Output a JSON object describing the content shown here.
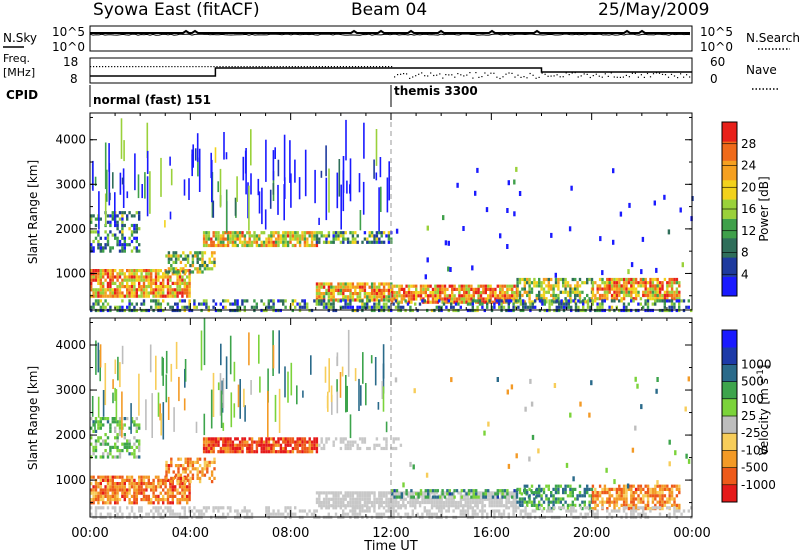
{
  "header": {
    "station": "Syowa East (fitACF)",
    "beam": "Beam 04",
    "date": "25/May/2009"
  },
  "top_panels": {
    "nsky_label": "N.Sky",
    "nsky_ticks": [
      "10^5",
      "10^0"
    ],
    "nsearch_label": "N.Search",
    "nsearch_ticks": [
      "10^5",
      "10^0"
    ],
    "freq_label": "Freq.",
    "freq_unit": "[MHz]",
    "freq_ticks": [
      "18",
      "8"
    ],
    "nave_label": "Nave",
    "nave_ticks": [
      "60",
      "0"
    ],
    "cpid_label": "CPID",
    "cpid_segments": [
      {
        "label": "normal (fast) 151",
        "start_hour": 0
      },
      {
        "label": "themis 3300",
        "start_hour": 12
      }
    ]
  },
  "colors": {
    "power_scale": [
      "#1a1aff",
      "#1e3a9e",
      "#2f6e5a",
      "#3fa04a",
      "#9ad13a",
      "#f2d21c",
      "#f5a020",
      "#ef6a1a",
      "#e8201a"
    ],
    "velocity_scale": [
      "#e51a1a",
      "#ee5a1a",
      "#f39a26",
      "#f7cd5a",
      "#bdbdbd",
      "#7bd33a",
      "#3da44c",
      "#2a6a8a",
      "#1d3aa8",
      "#1a1aff"
    ],
    "ground_scatter": "#c8c8c8"
  },
  "chart_data": [
    {
      "type": "heatmap",
      "title": "Power",
      "xlabel": "",
      "ylabel": "Slant Range [km]",
      "x_range_hours": [
        0,
        24
      ],
      "ylim": [
        180,
        4600
      ],
      "y_ticks": [
        1000,
        2000,
        3000,
        4000
      ],
      "colorbar_label": "Power [dB]",
      "colorbar_ticks": [
        "4",
        "8",
        "12",
        "16",
        "20",
        "24",
        "28"
      ],
      "colorbar_range": [
        0,
        30
      ],
      "scatter_regions": [
        {
          "t0": 0.0,
          "t1": 4.0,
          "r0": 500,
          "r1": 1100,
          "level": 0.72,
          "density": 0.8
        },
        {
          "t0": 0.0,
          "t1": 2.0,
          "r0": 1500,
          "r1": 2400,
          "level": 0.3,
          "density": 0.5
        },
        {
          "t0": 3.0,
          "t1": 5.0,
          "r0": 1000,
          "r1": 1500,
          "level": 0.5,
          "density": 0.6
        },
        {
          "t0": 4.5,
          "t1": 9.0,
          "r0": 1650,
          "r1": 1950,
          "level": 0.62,
          "density": 0.8
        },
        {
          "t0": 9.0,
          "t1": 12.0,
          "r0": 1700,
          "r1": 1950,
          "level": 0.35,
          "density": 0.6
        },
        {
          "t0": 9.0,
          "t1": 12.0,
          "r0": 400,
          "r1": 800,
          "level": 0.68,
          "density": 0.85
        },
        {
          "t0": 12.0,
          "t1": 17.0,
          "r0": 350,
          "r1": 750,
          "level": 0.75,
          "density": 0.85
        },
        {
          "t0": 17.0,
          "t1": 20.0,
          "r0": 350,
          "r1": 900,
          "level": 0.5,
          "density": 0.6
        },
        {
          "t0": 20.0,
          "t1": 23.5,
          "r0": 400,
          "r1": 900,
          "level": 0.7,
          "density": 0.75
        },
        {
          "t0": 0.0,
          "t1": 24.0,
          "r0": 180,
          "r1": 420,
          "level": 0.3,
          "density": 0.5
        }
      ]
    },
    {
      "type": "heatmap",
      "title": "Velocity",
      "xlabel": "Time UT",
      "ylabel": "Slant Range [km]",
      "x_range_hours": [
        0,
        24
      ],
      "x_ticks": [
        "00:00",
        "04:00",
        "08:00",
        "12:00",
        "16:00",
        "20:00",
        "00:00"
      ],
      "ylim": [
        180,
        4600
      ],
      "y_ticks": [
        1000,
        2000,
        3000,
        4000
      ],
      "colorbar_label": "Velocity [m s-1]",
      "colorbar_ticks": [
        "-1000",
        "-500",
        "-100",
        "-25",
        "25",
        "100",
        "500",
        "1000"
      ],
      "colorbar_range": [
        -1250,
        1250
      ],
      "scatter_regions": [
        {
          "t0": 0.0,
          "t1": 4.0,
          "r0": 500,
          "r1": 1100,
          "level": -0.6,
          "density": 0.75
        },
        {
          "t0": 0.0,
          "t1": 2.0,
          "r0": 1500,
          "r1": 2400,
          "level": 0.15,
          "density": 0.45
        },
        {
          "t0": 3.0,
          "t1": 5.0,
          "r0": 1000,
          "r1": 1500,
          "level": -0.55,
          "density": 0.6
        },
        {
          "t0": 4.5,
          "t1": 9.0,
          "r0": 1650,
          "r1": 1950,
          "level": -0.75,
          "density": 0.8
        },
        {
          "t0": 9.0,
          "t1": 12.5,
          "r0": 1700,
          "r1": 1950,
          "level": 0.0,
          "density": 0.5,
          "ground": true
        },
        {
          "t0": 9.0,
          "t1": 17.0,
          "r0": 400,
          "r1": 750,
          "level": 0.0,
          "density": 0.85,
          "ground": true
        },
        {
          "t0": 12.0,
          "t1": 18.0,
          "r0": 600,
          "r1": 800,
          "level": 0.35,
          "density": 0.5
        },
        {
          "t0": 17.0,
          "t1": 20.0,
          "r0": 350,
          "r1": 900,
          "level": 0.3,
          "density": 0.55
        },
        {
          "t0": 20.0,
          "t1": 23.5,
          "r0": 400,
          "r1": 900,
          "level": -0.55,
          "density": 0.7
        },
        {
          "t0": 0.0,
          "t1": 24.0,
          "r0": 180,
          "r1": 420,
          "level": 0.0,
          "density": 0.45,
          "ground": true
        }
      ]
    }
  ]
}
